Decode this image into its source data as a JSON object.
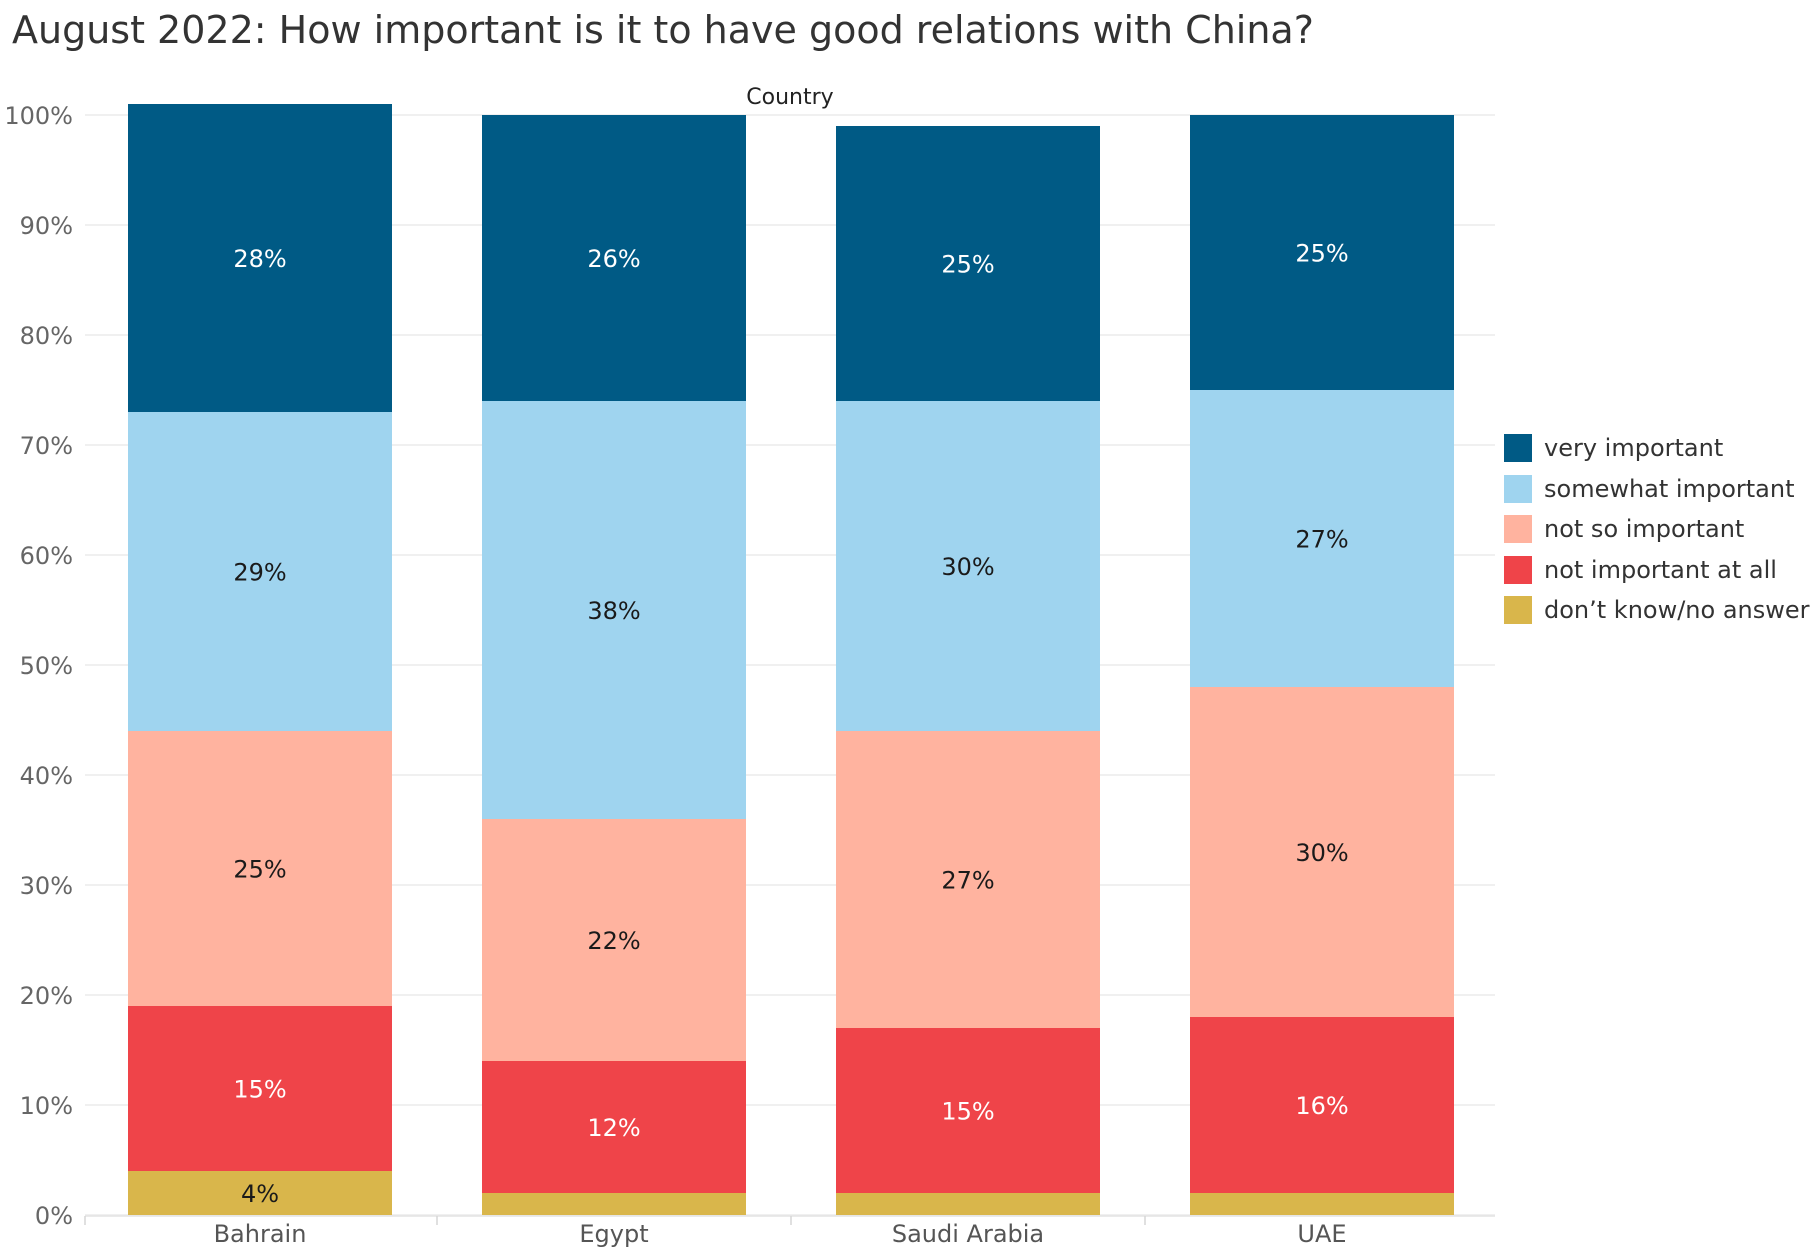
{
  "chart_data": {
    "type": "bar",
    "stacked": true,
    "title": "August 2022: How important is it to have good relations with China?",
    "column_header": "Country",
    "categories": [
      "Bahrain",
      "Egypt",
      "Saudi Arabia",
      "UAE"
    ],
    "series": [
      {
        "name": "don’t know/no answer",
        "color": "#d9b64b",
        "label_color": "#1a1a1a",
        "values": [
          4,
          2,
          2,
          2
        ],
        "labels": [
          "4%",
          "",
          "",
          ""
        ]
      },
      {
        "name": "not important at all",
        "color": "#ef4449",
        "label_color": "#ffffff",
        "values": [
          15,
          12,
          15,
          16
        ],
        "labels": [
          "15%",
          "12%",
          "15%",
          "16%"
        ]
      },
      {
        "name": "not so important",
        "color": "#ffb39f",
        "label_color": "#1a1a1a",
        "values": [
          25,
          22,
          27,
          30
        ],
        "labels": [
          "25%",
          "22%",
          "27%",
          "30%"
        ]
      },
      {
        "name": "somewhat important",
        "color": "#9fd4ef",
        "label_color": "#1a1a1a",
        "values": [
          29,
          38,
          30,
          27
        ],
        "labels": [
          "29%",
          "38%",
          "30%",
          "27%"
        ]
      },
      {
        "name": "very important",
        "color": "#005a85",
        "label_color": "#ffffff",
        "values": [
          28,
          26,
          25,
          25
        ],
        "labels": [
          "28%",
          "26%",
          "25%",
          "25%"
        ]
      }
    ],
    "legend_order": [
      "very important",
      "somewhat important",
      "not so important",
      "not important at all",
      "don’t know/no answer"
    ],
    "legend_position": "right",
    "ylim": [
      0,
      100
    ],
    "y_ticks": [
      0,
      10,
      20,
      30,
      40,
      50,
      60,
      70,
      80,
      90,
      100
    ],
    "y_tick_labels": [
      "0%",
      "10%",
      "20%",
      "30%",
      "40%",
      "50%",
      "60%",
      "70%",
      "80%",
      "90%",
      "100%"
    ],
    "grid": true
  }
}
